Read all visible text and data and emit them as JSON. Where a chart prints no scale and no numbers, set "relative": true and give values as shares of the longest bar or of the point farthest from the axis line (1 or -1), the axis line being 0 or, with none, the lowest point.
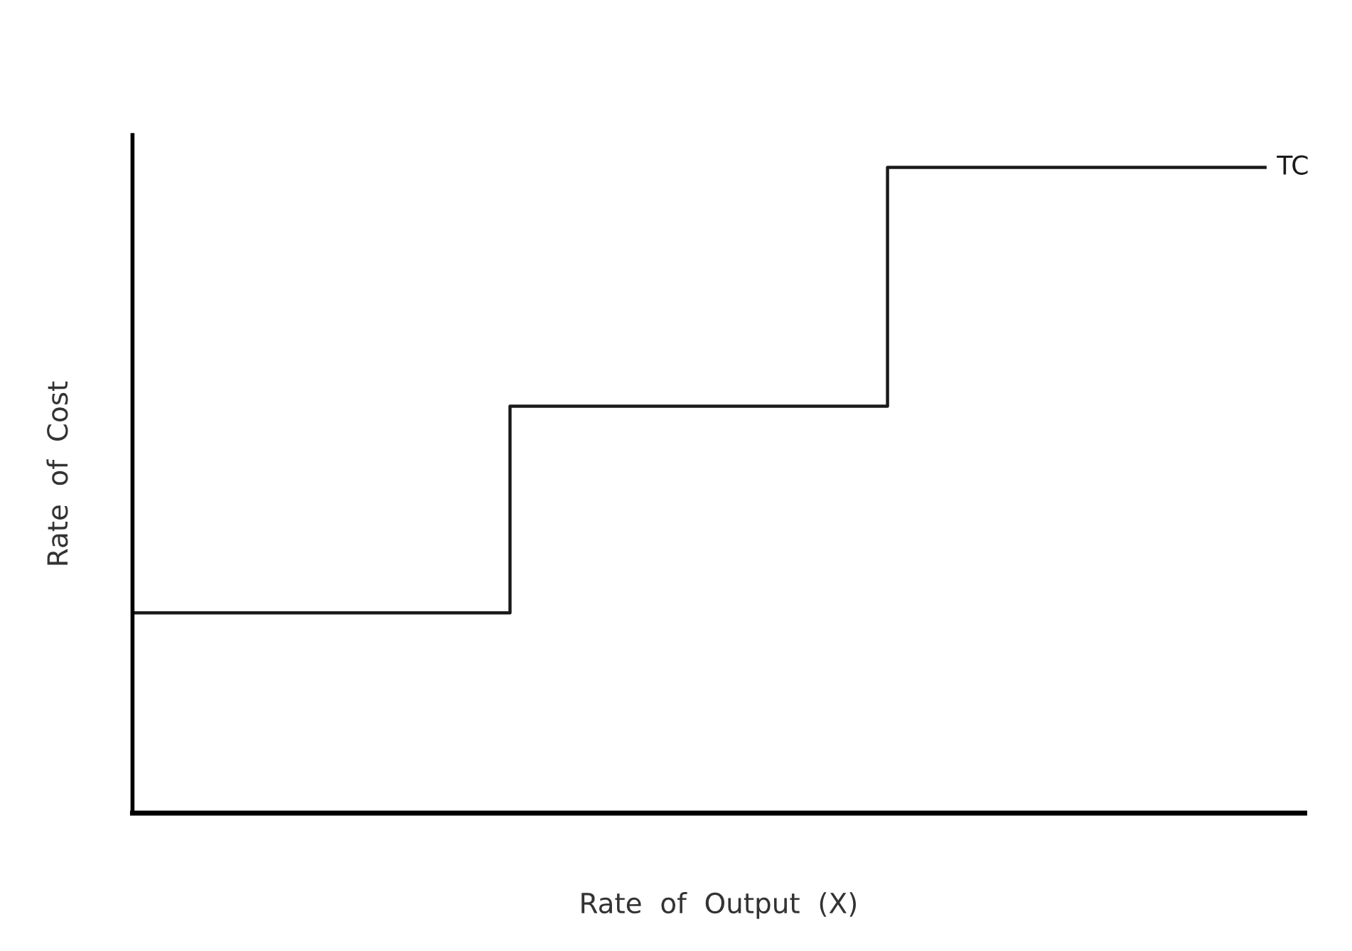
{
  "chart_data": {
    "type": "step",
    "relative": true,
    "xlabel": "Rate  of  Output  (X)",
    "ylabel": "Rate  of  Cost",
    "categories": [
      null,
      null,
      null,
      null
    ],
    "series": [
      {
        "name": "TC",
        "color": "#1a1a1a",
        "values": [
          0.31,
          0.63,
          1,
          1
        ]
      }
    ],
    "legend": false,
    "line_style": "solid",
    "marker": "none"
  }
}
